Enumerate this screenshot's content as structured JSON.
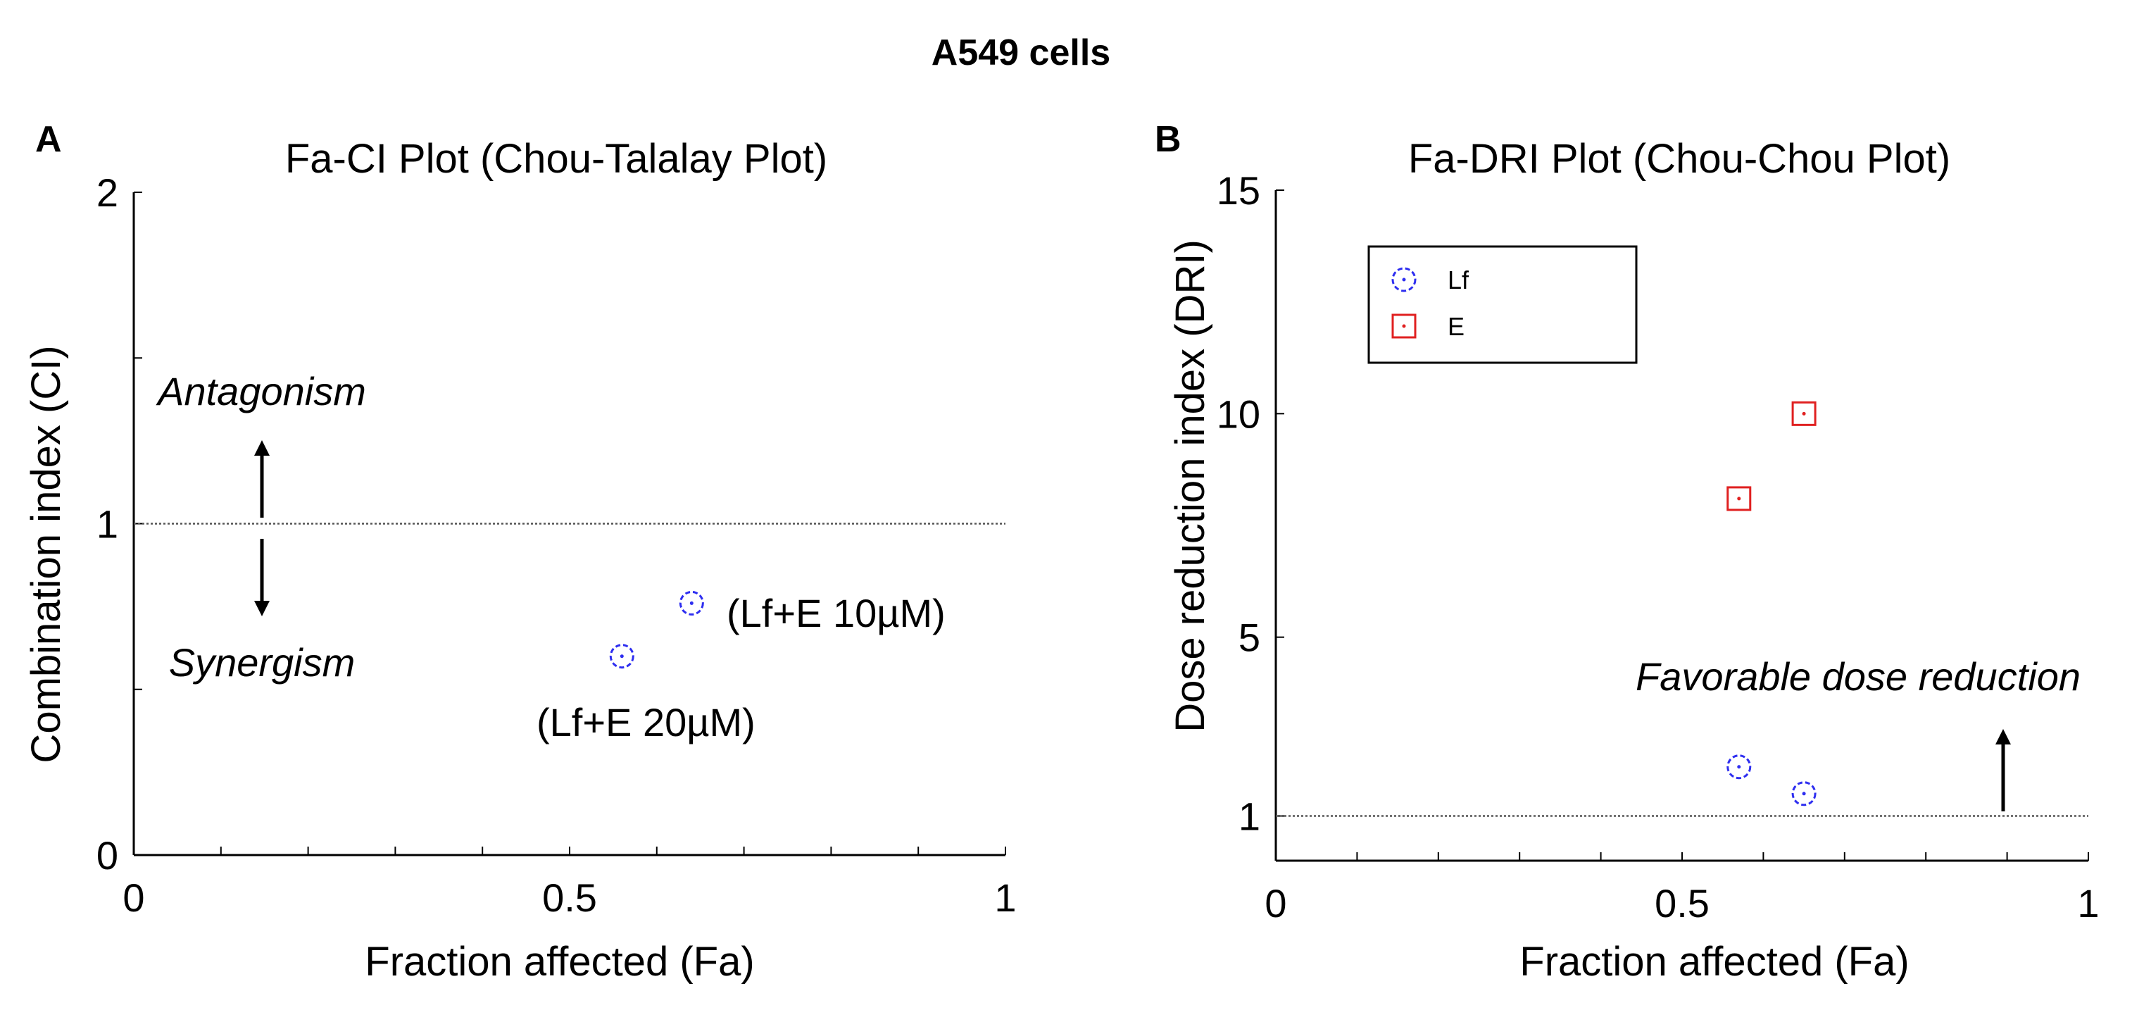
{
  "figure": {
    "title": "A549 cells"
  },
  "chart_data": [
    {
      "type": "scatter",
      "panel_label": "A",
      "title": "Fa-CI Plot (Chou-Talalay Plot)",
      "xlabel": "Fraction affected (Fa)",
      "ylabel": "Combination index (CI)",
      "xlim": [
        0,
        1
      ],
      "ylim": [
        0,
        2
      ],
      "xticks": [
        0,
        0.5,
        1
      ],
      "xtick_labels": [
        "0",
        "0.5",
        "1"
      ],
      "yticks": [
        0,
        1,
        2
      ],
      "ytick_labels": [
        "0",
        "1",
        "2"
      ],
      "minor_xticks": [
        0.1,
        0.2,
        0.3,
        0.4,
        0.6,
        0.7,
        0.8,
        0.9
      ],
      "minor_yticks": [
        0.5,
        1.5
      ],
      "reference_line": 1,
      "series": [
        {
          "color": "#2e2ef0",
          "marker": "circle",
          "points": [
            {
              "x": 0.56,
              "y": 0.6,
              "label": "(Lf+E 20µM)"
            },
            {
              "x": 0.64,
              "y": 0.76,
              "label": "(Lf+E 10µM)"
            }
          ]
        }
      ],
      "annotations": {
        "upper": "Antagonism",
        "lower": "Synergism"
      }
    },
    {
      "type": "scatter",
      "panel_label": "B",
      "title": "Fa-DRI Plot (Chou-Chou Plot)",
      "xlabel": "Fraction affected (Fa)",
      "ylabel": "Dose reduction index (DRI)",
      "xlim": [
        0,
        1
      ],
      "ylim": [
        0,
        15
      ],
      "xticks": [
        0,
        0.5,
        1
      ],
      "xtick_labels": [
        "0",
        "0.5",
        "1"
      ],
      "yticks": [
        1,
        5,
        10,
        15
      ],
      "ytick_labels": [
        "1",
        "5",
        "10",
        "15"
      ],
      "minor_xticks": [
        0.1,
        0.2,
        0.3,
        0.4,
        0.6,
        0.7,
        0.8,
        0.9
      ],
      "reference_line": 1,
      "series": [
        {
          "name": "Lf",
          "color": "#2e2ef0",
          "marker": "circle",
          "x": [
            0.57,
            0.65
          ],
          "y": [
            2.1,
            1.5
          ]
        },
        {
          "name": "E",
          "color": "#e02020",
          "marker": "square",
          "x": [
            0.57,
            0.65
          ],
          "y": [
            8.1,
            10.0
          ]
        }
      ],
      "legend": {
        "position": "upper-left",
        "entries": [
          "Lf",
          "E"
        ]
      },
      "annotations": {
        "text": "Favorable dose reduction"
      }
    }
  ]
}
